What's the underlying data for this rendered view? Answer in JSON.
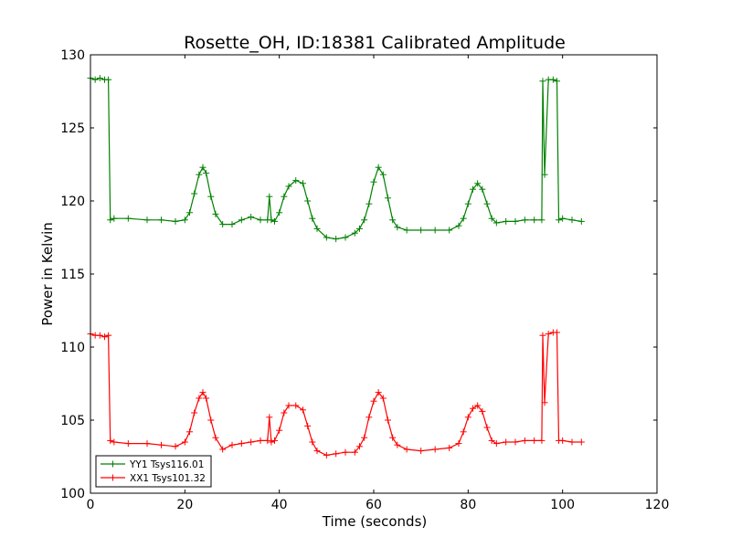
{
  "chart_data": {
    "type": "line",
    "title": "Rosette_OH, ID:18381 Calibrated Amplitude",
    "xlabel": "Time (seconds)",
    "ylabel": "Power in Kelvin",
    "xlim": [
      0,
      120
    ],
    "ylim": [
      100,
      130
    ],
    "xticks": [
      "0",
      "20",
      "40",
      "60",
      "80",
      "100",
      "120"
    ],
    "yticks": [
      "100",
      "105",
      "110",
      "115",
      "120",
      "125",
      "130"
    ],
    "grid": false,
    "legend_position": "lower-left",
    "marker": "plus",
    "series": [
      {
        "name": "YY1 Tsys116.01",
        "color": "#008000",
        "x": [
          0,
          1,
          2,
          3,
          3.8,
          4.2,
          5,
          8,
          12,
          15,
          18,
          20,
          21,
          22,
          23,
          23.8,
          24.5,
          25.5,
          26.5,
          28,
          30,
          32,
          34,
          36,
          37.5,
          37.9,
          38.3,
          39,
          40,
          41,
          42,
          43.5,
          45,
          46,
          47,
          48,
          50,
          52,
          54,
          56,
          57,
          58,
          59,
          60,
          61,
          62,
          63,
          64,
          65,
          67,
          70,
          73,
          76,
          78,
          79,
          80,
          81,
          82,
          83,
          84,
          85,
          86,
          88,
          90,
          92,
          94,
          95.6,
          95.8,
          96.2,
          97,
          98,
          98.8,
          99.2,
          100,
          102,
          104
        ],
        "values": [
          128.4,
          128.3,
          128.4,
          128.3,
          128.3,
          118.7,
          118.8,
          118.8,
          118.7,
          118.7,
          118.6,
          118.7,
          119.2,
          120.5,
          121.8,
          122.3,
          121.9,
          120.3,
          119.1,
          118.4,
          118.4,
          118.7,
          118.9,
          118.7,
          118.7,
          120.3,
          118.7,
          118.6,
          119.2,
          120.3,
          121.0,
          121.4,
          121.2,
          120.0,
          118.8,
          118.1,
          117.5,
          117.4,
          117.5,
          117.8,
          118.1,
          118.7,
          119.8,
          121.3,
          122.3,
          121.8,
          120.2,
          118.7,
          118.2,
          118.0,
          118.0,
          118.0,
          118.0,
          118.3,
          118.8,
          119.8,
          120.8,
          121.2,
          120.8,
          119.8,
          118.8,
          118.5,
          118.6,
          118.6,
          118.7,
          118.7,
          118.7,
          128.2,
          121.8,
          128.3,
          128.3,
          128.2,
          118.7,
          118.8,
          118.7,
          118.6
        ]
      },
      {
        "name": "XX1 Tsys101.32",
        "color": "#ff0000",
        "x": [
          0,
          1,
          2,
          3,
          3.8,
          4.2,
          5,
          8,
          12,
          15,
          18,
          20,
          21,
          22,
          23,
          23.8,
          24.5,
          25.5,
          26.5,
          28,
          30,
          32,
          34,
          36,
          37.5,
          37.9,
          38.3,
          39,
          40,
          41,
          42,
          43.5,
          45,
          46,
          47,
          48,
          50,
          52,
          54,
          56,
          57,
          58,
          59,
          60,
          61,
          62,
          63,
          64,
          65,
          67,
          70,
          73,
          76,
          78,
          79,
          80,
          81,
          82,
          83,
          84,
          85,
          86,
          88,
          90,
          92,
          94,
          95.6,
          95.8,
          96.2,
          97,
          98,
          98.8,
          99.2,
          100,
          102,
          104
        ],
        "values": [
          110.9,
          110.8,
          110.8,
          110.7,
          110.8,
          103.6,
          103.5,
          103.4,
          103.4,
          103.3,
          103.2,
          103.5,
          104.2,
          105.5,
          106.5,
          106.9,
          106.5,
          105.0,
          103.8,
          103.0,
          103.3,
          103.4,
          103.5,
          103.6,
          103.6,
          105.2,
          103.5,
          103.6,
          104.3,
          105.5,
          106.0,
          106.0,
          105.7,
          104.6,
          103.5,
          102.9,
          102.6,
          102.7,
          102.8,
          102.8,
          103.2,
          103.8,
          105.2,
          106.3,
          106.9,
          106.5,
          105.0,
          103.8,
          103.3,
          103.0,
          102.9,
          103.0,
          103.1,
          103.4,
          104.2,
          105.2,
          105.8,
          106.0,
          105.6,
          104.5,
          103.6,
          103.4,
          103.5,
          103.5,
          103.6,
          103.6,
          103.6,
          110.8,
          106.2,
          110.9,
          111.0,
          111.0,
          103.6,
          103.6,
          103.5,
          103.5
        ]
      }
    ]
  }
}
